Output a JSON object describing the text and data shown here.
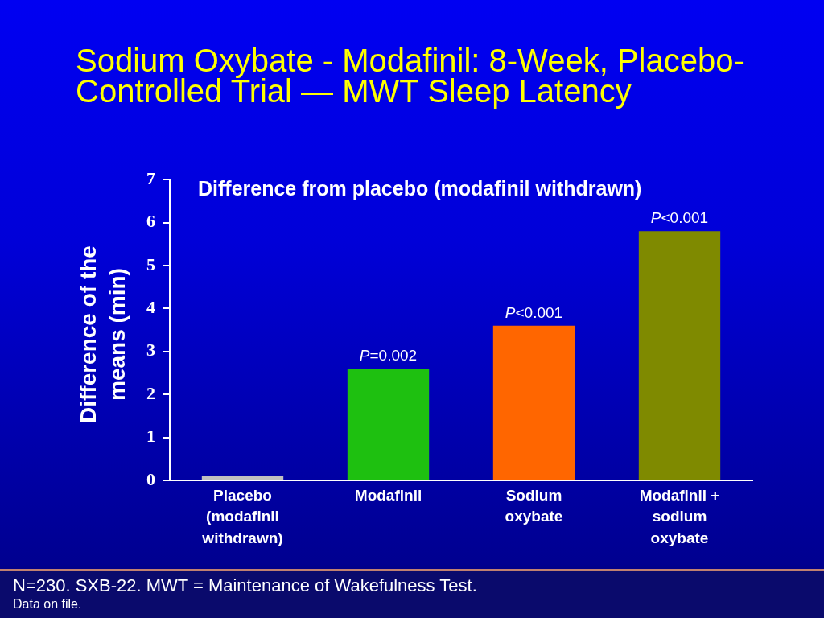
{
  "chart_data": {
    "type": "bar",
    "title": "Sodium Oxybate - Modafinil: 8-Week, Placebo-Controlled Trial — MWT Sleep Latency",
    "subtitle": "Difference from placebo (modafinil withdrawn)",
    "ylabel": "Difference of the means (min)",
    "categories": [
      "Placebo (modafinil withdrawn)",
      "Modafinil",
      "Sodium oxybate",
      "Modafinil + sodium oxybate"
    ],
    "values": [
      0.1,
      2.6,
      3.6,
      5.8
    ],
    "colors": [
      "#c0c0c0",
      "#1ec010",
      "#ff6600",
      "#7f8a00"
    ],
    "ylim": [
      0,
      7
    ],
    "yticks": [
      0,
      1,
      2,
      3,
      4,
      5,
      6,
      7
    ],
    "grid": false,
    "legend": false,
    "annotations": [
      {
        "text": "P=0.002",
        "x": "Modafinil",
        "y": 2.6
      },
      {
        "text": "P<0.001",
        "x": "Sodium oxybate",
        "y": 3.6
      },
      {
        "text": "P<0.001",
        "x": "Modafinil + sodium oxybate",
        "y": 5.8
      },
      "N=230. SXB-22. MWT = Maintenance of Wakefulness Test.",
      "Data on file."
    ]
  }
}
